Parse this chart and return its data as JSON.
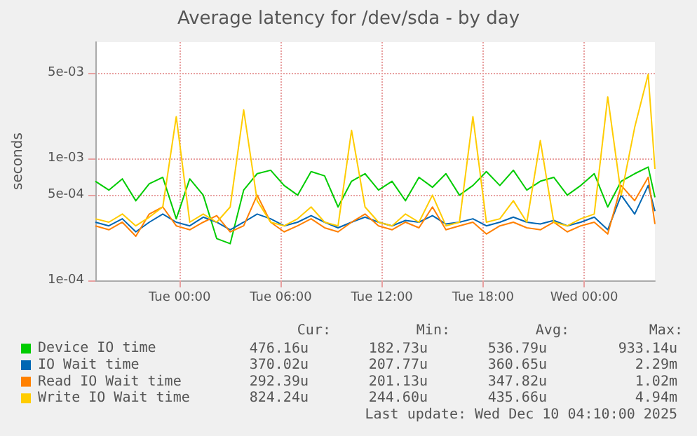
{
  "chart_data": {
    "type": "line",
    "title": "Average latency for /dev/sda - by day",
    "ylabel": "seconds",
    "x": [
      "2025-12-08T19:00",
      "2025-12-08T19:48",
      "2025-12-08T20:36",
      "2025-12-08T21:24",
      "2025-12-08T22:12",
      "2025-12-08T23:00",
      "2025-12-08T23:48",
      "2025-12-09T00:36",
      "2025-12-09T01:24",
      "2025-12-09T02:12",
      "2025-12-09T03:00",
      "2025-12-09T03:48",
      "2025-12-09T04:36",
      "2025-12-09T05:24",
      "2025-12-09T06:12",
      "2025-12-09T07:00",
      "2025-12-09T07:48",
      "2025-12-09T08:36",
      "2025-12-09T09:24",
      "2025-12-09T10:12",
      "2025-12-09T11:00",
      "2025-12-09T11:48",
      "2025-12-09T12:36",
      "2025-12-09T13:24",
      "2025-12-09T14:12",
      "2025-12-09T15:00",
      "2025-12-09T15:48",
      "2025-12-09T16:36",
      "2025-12-09T17:24",
      "2025-12-09T18:12",
      "2025-12-09T19:00",
      "2025-12-09T19:48",
      "2025-12-09T20:36",
      "2025-12-09T21:24",
      "2025-12-09T22:12",
      "2025-12-09T23:00",
      "2025-12-09T23:48",
      "2025-12-10T00:36",
      "2025-12-10T01:24",
      "2025-12-10T02:12",
      "2025-12-10T03:00",
      "2025-12-10T03:48",
      "2025-12-10T04:12"
    ],
    "xlim": [
      "2025-12-08T19:00",
      "2025-12-10T04:12"
    ],
    "xticks": [
      {
        "value": "2025-12-09T00:00",
        "label": "Tue 00:00"
      },
      {
        "value": "2025-12-09T06:00",
        "label": "Tue 06:00"
      },
      {
        "value": "2025-12-09T12:00",
        "label": "Tue 12:00"
      },
      {
        "value": "2025-12-09T18:00",
        "label": "Tue 18:00"
      },
      {
        "value": "2025-12-10T00:00",
        "label": "Wed 00:00"
      }
    ],
    "ylim": [
      0.0001,
      0.009
    ],
    "yticks": [
      {
        "value": 0.0001,
        "label": "1e-04"
      },
      {
        "value": 0.0005,
        "label": "5e-04"
      },
      {
        "value": 0.001,
        "label": "1e-03"
      },
      {
        "value": 0.005,
        "label": "5e-03"
      }
    ],
    "log": true,
    "grid": true,
    "legend": "bottom",
    "marker": "none",
    "line_style": "solid",
    "series": [
      {
        "name": "Device IO time",
        "color": "#00cc00",
        "values": [
          0.00065,
          0.00055,
          0.00068,
          0.00045,
          0.00062,
          0.0007,
          0.00032,
          0.00068,
          0.0005,
          0.00022,
          0.0002,
          0.00055,
          0.00075,
          0.0008,
          0.0006,
          0.0005,
          0.00078,
          0.00072,
          0.0004,
          0.00065,
          0.00075,
          0.00055,
          0.00065,
          0.00045,
          0.0007,
          0.00058,
          0.00075,
          0.0005,
          0.0006,
          0.00078,
          0.0006,
          0.0008,
          0.00055,
          0.00065,
          0.0007,
          0.0005,
          0.0006,
          0.00075,
          0.0004,
          0.00065,
          0.00075,
          0.00085,
          0.00048
        ]
      },
      {
        "name": "IO Wait time",
        "color": "#0066b3",
        "values": [
          0.0003,
          0.00028,
          0.00032,
          0.00025,
          0.0003,
          0.00035,
          0.0003,
          0.00028,
          0.00033,
          0.0003,
          0.00026,
          0.0003,
          0.00035,
          0.00032,
          0.00028,
          0.0003,
          0.00034,
          0.0003,
          0.00027,
          0.0003,
          0.00033,
          0.0003,
          0.00028,
          0.00031,
          0.0003,
          0.00034,
          0.00029,
          0.0003,
          0.00032,
          0.00028,
          0.0003,
          0.00033,
          0.0003,
          0.00029,
          0.00031,
          0.00028,
          0.0003,
          0.00033,
          0.00026,
          0.0005,
          0.00035,
          0.0006,
          0.00037
        ]
      },
      {
        "name": "Read IO Wait time",
        "color": "#ff8000",
        "values": [
          0.00028,
          0.00026,
          0.0003,
          0.00023,
          0.00035,
          0.0004,
          0.00028,
          0.00026,
          0.0003,
          0.00034,
          0.00025,
          0.00028,
          0.0005,
          0.0003,
          0.00025,
          0.00028,
          0.00032,
          0.00027,
          0.00025,
          0.0003,
          0.00035,
          0.00028,
          0.00026,
          0.0003,
          0.00027,
          0.0004,
          0.00026,
          0.00028,
          0.0003,
          0.00024,
          0.00028,
          0.0003,
          0.00027,
          0.00026,
          0.0003,
          0.00025,
          0.00028,
          0.0003,
          0.00024,
          0.0006,
          0.00045,
          0.0007,
          0.00029
        ]
      },
      {
        "name": "Write IO Wait time",
        "color": "#ffcc00",
        "values": [
          0.00032,
          0.0003,
          0.00035,
          0.00028,
          0.00033,
          0.0004,
          0.0022,
          0.0003,
          0.00035,
          0.0003,
          0.0004,
          0.0025,
          0.00045,
          0.0003,
          0.00028,
          0.00032,
          0.0004,
          0.0003,
          0.00028,
          0.0017,
          0.0004,
          0.0003,
          0.00028,
          0.00035,
          0.0003,
          0.0005,
          0.00028,
          0.0003,
          0.0022,
          0.0003,
          0.00032,
          0.00045,
          0.0003,
          0.0014,
          0.0003,
          0.00028,
          0.00032,
          0.00035,
          0.0032,
          0.0005,
          0.0018,
          0.0049,
          0.00082
        ]
      }
    ],
    "annotations": [
      "Cur:",
      "Min:",
      "Avg:",
      "Max:",
      "476.16u",
      "182.73u",
      "536.79u",
      "933.14u",
      "370.02u",
      "207.77u",
      "360.65u",
      "2.29m",
      "292.39u",
      "201.13u",
      "347.82u",
      "1.02m",
      "824.24u",
      "244.60u",
      "435.66u",
      "4.94m",
      "Last update: Wed Dec 10 04:10:00 2025"
    ]
  }
}
